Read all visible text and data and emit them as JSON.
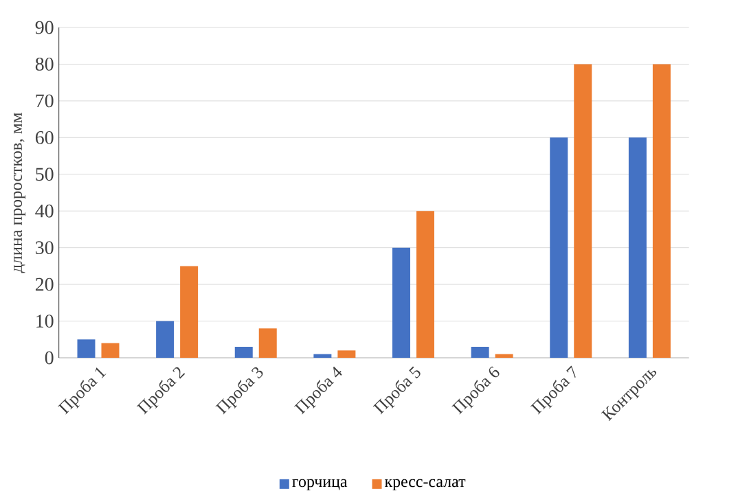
{
  "chart_data": {
    "type": "bar",
    "ylabel": "длина проростков, мм",
    "categories": [
      "Проба 1",
      "Проба 2",
      "Проба 3",
      "Проба 4",
      "Проба 5",
      "Проба 6",
      "Проба 7",
      "Контроль"
    ],
    "series": [
      {
        "name": "горчица",
        "color": "#4472c4",
        "values": [
          5,
          10,
          3,
          1,
          30,
          3,
          60,
          60
        ]
      },
      {
        "name": "кресс-салат",
        "color": "#ed7d31",
        "values": [
          4,
          25,
          8,
          2,
          40,
          1,
          80,
          80
        ]
      }
    ],
    "ylim": [
      0,
      90
    ],
    "yticks": [
      0,
      10,
      20,
      30,
      40,
      50,
      60,
      70,
      80,
      90
    ],
    "grid": "y",
    "legend": "bottom"
  }
}
